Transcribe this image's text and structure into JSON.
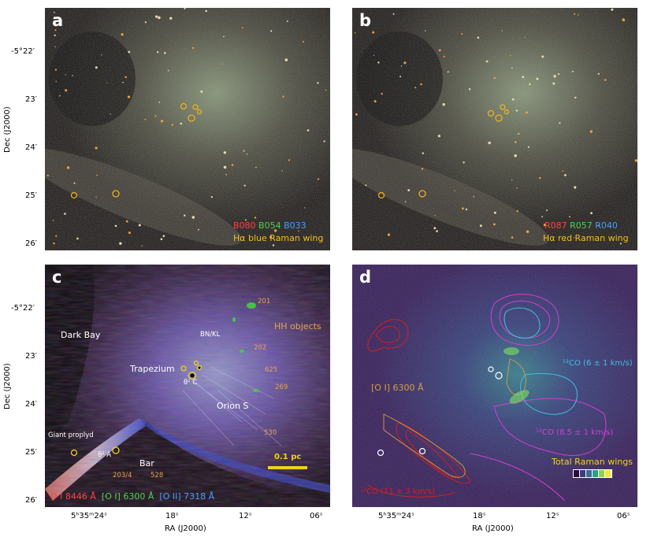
{
  "panel_a": {
    "label": "a",
    "legend": {
      "red": "B080",
      "green": "B054",
      "blue": "B033",
      "subtitle": "Hα blue Raman wing"
    }
  },
  "panel_b": {
    "label": "b",
    "legend": {
      "red": "R087",
      "green": "R057",
      "blue": "R040",
      "subtitle": "Hα red Raman wing"
    }
  },
  "panel_c": {
    "label": "c",
    "annotations": {
      "dark_bay": "Dark Bay",
      "bn_kl": "BN/KL",
      "trapezium": "Trapezium",
      "theta1c": "θ¹ C",
      "orion_s": "Orion S",
      "hh_objects": "HH objects",
      "hh201": "201",
      "hh202": "202",
      "hh625": "625",
      "hh269": "269",
      "hh530": "530",
      "giant_proplyd": "Giant proplyd",
      "theta2a": "θ² A",
      "bar": "Bar",
      "p203": "203/4",
      "p528": "528",
      "scale_bar": "0.1 pc"
    },
    "legend": {
      "oi8446": "O I 8446 Å",
      "oi6300": "[O I] 6300 Å",
      "oii7318": "[O II] 7318 Å"
    }
  },
  "panel_d": {
    "label": "d",
    "annotations": {
      "co_blue": "¹²CO  (6 ± 1 km/s)",
      "co_magenta": "¹²CO  (8.5 ± 1 km/s)",
      "co_red": "¹²CO  (11 ± 3 km/s)",
      "oi": "[O I] 6300 Å",
      "raman": "Total Raman wings"
    },
    "colorbar": [
      "#2a0d3a",
      "#3b3c7a",
      "#3a6e8e",
      "#2aa08a",
      "#8fd24a",
      "#f4e53a"
    ]
  },
  "axes": {
    "ylabel": "Dec (J2000)",
    "xlabel": "RA (J2000)",
    "yticks": [
      "-5°22′",
      "23′",
      "24′",
      "25′",
      "26′"
    ],
    "xticks": [
      "5ʰ35ᵐ24ˢ",
      "18ˢ",
      "12ˢ",
      "06ˢ"
    ]
  },
  "colors": {
    "legend_red": "#ff4040",
    "legend_green": "#50d050",
    "legend_blue": "#3fa0ff",
    "gold": "#f0c020",
    "orange_label": "#e8a050",
    "co_blue": "#40c0e0",
    "co_magenta": "#d040d0",
    "co_red": "#d02020",
    "oi_contour": "#d0a040"
  }
}
